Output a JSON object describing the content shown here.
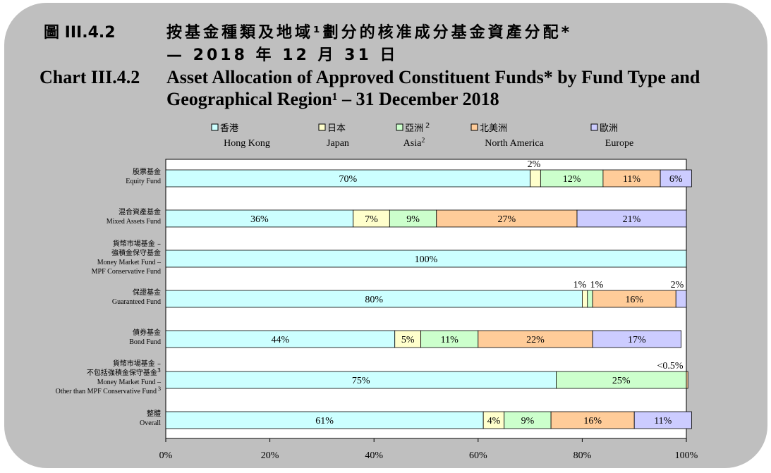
{
  "figure": {
    "label_zh": "圖 III.4.2",
    "title_zh_line1": "按基金種類及地域¹劃分的核准成分基金資產分配*",
    "title_zh_line2": "— 2018 年 12 月 31 日",
    "label_en": "Chart III.4.2",
    "title_en_line1": "Asset Allocation of Approved Constituent Funds* by Fund Type and",
    "title_en_line2": "Geographical Region¹ – 31 December 2018"
  },
  "colors": {
    "hong_kong": "#ccffff",
    "japan": "#ffffcc",
    "asia": "#ccffcc",
    "north_america": "#ffcc99",
    "europe": "#ccccff",
    "background": "#bfbfbf"
  },
  "chart_data": {
    "type": "bar",
    "orientation": "horizontal",
    "stacked": true,
    "xlim": [
      0,
      100
    ],
    "xticks": [
      "0%",
      "20%",
      "40%",
      "60%",
      "80%",
      "100%"
    ],
    "grid": false,
    "legend_position": "top",
    "categories": [
      {
        "zh": "股票基金",
        "en": [
          "Equity Fund"
        ]
      },
      {
        "zh": "混合資產基金",
        "en": [
          "Mixed Assets Fund"
        ]
      },
      {
        "zh": "貨幣市場基金 –\n強積金保守基金",
        "en": [
          "Money Market Fund –",
          "MPF Conservative Fund"
        ]
      },
      {
        "zh": "保證基金",
        "en": [
          "Guaranteed Fund"
        ]
      },
      {
        "zh": "債券基金",
        "en": [
          "Bond Fund"
        ]
      },
      {
        "zh": "貨幣市場基金 –\n不包括強積金保守基金",
        "zh_sup": "3",
        "en": [
          "Money Market Fund –",
          "Other than MPF Conservative Fund"
        ],
        "en_sup": "3"
      },
      {
        "zh": "整體",
        "en": [
          "Overall"
        ]
      }
    ],
    "series": [
      {
        "name_zh": "香港",
        "name_en": "Hong Kong",
        "color_key": "hong_kong",
        "values": [
          70,
          36,
          100,
          80,
          44,
          75,
          61
        ],
        "labels": [
          "70%",
          "36%",
          "100%",
          "80%",
          "44%",
          "75%",
          "61%"
        ]
      },
      {
        "name_zh": "日本",
        "name_en": "Japan",
        "color_key": "japan",
        "values": [
          2,
          7,
          0,
          1,
          5,
          0,
          4
        ],
        "labels": [
          "2%",
          "7%",
          "",
          "1%",
          "5%",
          "",
          "4%"
        ]
      },
      {
        "name_zh": "亞洲",
        "name_en": "Asia",
        "sup": "2",
        "color_key": "asia",
        "values": [
          12,
          9,
          0,
          1,
          11,
          25,
          9
        ],
        "labels": [
          "12%",
          "9%",
          "",
          "1%",
          "11%",
          "25%",
          "9%"
        ]
      },
      {
        "name_zh": "北美洲",
        "name_en": "North America",
        "color_key": "north_america",
        "values": [
          11,
          27,
          0,
          16,
          22,
          0.3,
          16
        ],
        "labels": [
          "11%",
          "27%",
          "",
          "16%",
          "22%",
          "<0.5%",
          "16%"
        ]
      },
      {
        "name_zh": "歐洲",
        "name_en": "Europe",
        "color_key": "europe",
        "values": [
          6,
          21,
          0,
          2,
          17,
          0,
          11
        ],
        "labels": [
          "6%",
          "21%",
          "",
          "2%",
          "17%",
          "",
          "11%"
        ]
      }
    ]
  }
}
